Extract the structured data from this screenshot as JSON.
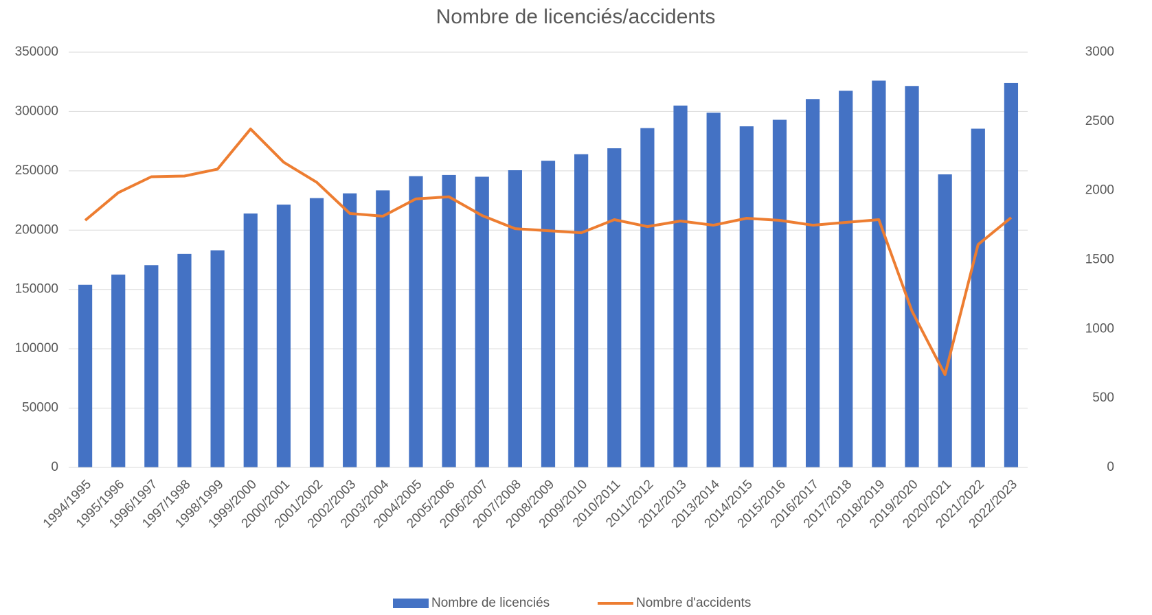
{
  "chart_data": {
    "type": "bar_line",
    "title": "Nombre de licenciés/accidents",
    "categories": [
      "1994/1995",
      "1995/1996",
      "1996/1997",
      "1997/1998",
      "1998/1999",
      "1999/2000",
      "2000/2001",
      "2001/2002",
      "2002/2003",
      "2003/2004",
      "2004/2005",
      "2005/2006",
      "2006/2007",
      "2007/2008",
      "2008/2009",
      "2009/2010",
      "2010/2011",
      "2011/2012",
      "2012/2013",
      "2013/2014",
      "2014/2015",
      "2015/2016",
      "2016/2017",
      "2017/2018",
      "2018/2019",
      "2019/2020",
      "2020/2021",
      "2021/2022",
      "2022/2023"
    ],
    "series": [
      {
        "name": "Nombre de licenciés",
        "type": "bar",
        "color": "#4472c4",
        "values": [
          154000,
          162500,
          170500,
          180000,
          183000,
          214000,
          221500,
          227000,
          231000,
          233500,
          245500,
          246500,
          245000,
          250500,
          258500,
          264000,
          269000,
          286000,
          305000,
          299000,
          287500,
          293000,
          310500,
          317500,
          326000,
          321500,
          247000,
          285500,
          324000
        ]
      },
      {
        "name": "Nombre d'accidents",
        "type": "line",
        "axis": "y2",
        "color": "#ed7d31",
        "values": [
          1785,
          1985,
          2100,
          2105,
          2155,
          2445,
          2205,
          2060,
          1835,
          1815,
          1940,
          1955,
          1820,
          1725,
          1710,
          1695,
          1790,
          1740,
          1780,
          1750,
          1800,
          1785,
          1750,
          1770,
          1790,
          1130,
          670,
          1610,
          1805
        ]
      }
    ],
    "ylim": [
      0,
      350000
    ],
    "yticks": [
      0,
      50000,
      100000,
      150000,
      200000,
      250000,
      300000,
      350000
    ],
    "y2lim": [
      0,
      3000
    ],
    "y2ticks": [
      0,
      500,
      1000,
      1500,
      2000,
      2500,
      3000
    ],
    "grid": true,
    "legend": "bottom"
  }
}
